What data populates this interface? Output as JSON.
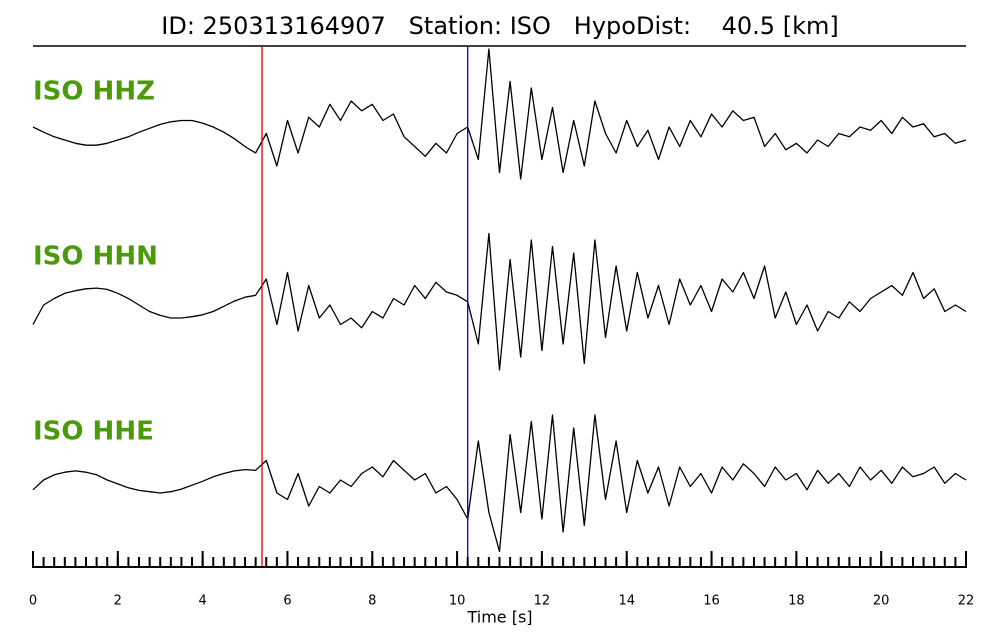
{
  "chart_data": {
    "type": "line",
    "title": "ID: 250313164907   Station: ISO   HypoDist:    40.5 [km]",
    "x_label": "Time [s]",
    "x": [
      0,
      0.25,
      0.5,
      0.75,
      1,
      1.25,
      1.5,
      1.75,
      2,
      2.25,
      2.5,
      2.75,
      3,
      3.25,
      3.5,
      3.75,
      4,
      4.25,
      4.5,
      4.75,
      5,
      5.25,
      5.5,
      5.75,
      6,
      6.25,
      6.5,
      6.75,
      7,
      7.25,
      7.5,
      7.75,
      8,
      8.25,
      8.5,
      8.75,
      9,
      9.25,
      9.5,
      9.75,
      10,
      10.25,
      10.5,
      10.75,
      11,
      11.25,
      11.5,
      11.75,
      12,
      12.25,
      12.5,
      12.75,
      13,
      13.25,
      13.5,
      13.75,
      14,
      14.25,
      14.5,
      14.75,
      15,
      15.25,
      15.5,
      15.75,
      16,
      16.25,
      16.5,
      16.75,
      17,
      17.25,
      17.5,
      17.75,
      18,
      18.25,
      18.5,
      18.75,
      19,
      19.25,
      19.5,
      19.75,
      20,
      20.25,
      20.5,
      20.75,
      21,
      21.25,
      21.5,
      21.75,
      22
    ],
    "series": [
      {
        "name": "ISO HHZ",
        "color": "#000000",
        "values": [
          0.2,
          0.12,
          0.05,
          0.0,
          -0.05,
          -0.08,
          -0.08,
          -0.05,
          0.0,
          0.05,
          0.12,
          0.18,
          0.24,
          0.28,
          0.3,
          0.3,
          0.26,
          0.2,
          0.12,
          0.02,
          -0.1,
          -0.2,
          0.1,
          -0.4,
          0.3,
          -0.2,
          0.35,
          0.2,
          0.55,
          0.3,
          0.6,
          0.45,
          0.55,
          0.3,
          0.4,
          0.05,
          -0.1,
          -0.25,
          -0.05,
          -0.2,
          0.1,
          0.2,
          -0.3,
          1.4,
          -0.5,
          0.9,
          -0.6,
          0.8,
          -0.3,
          0.5,
          -0.5,
          0.3,
          -0.4,
          0.6,
          0.1,
          -0.2,
          0.3,
          -0.1,
          0.15,
          -0.3,
          0.2,
          -0.1,
          0.3,
          0.05,
          0.4,
          0.2,
          0.45,
          0.3,
          0.35,
          -0.1,
          0.1,
          -0.15,
          -0.05,
          -0.2,
          0.0,
          -0.1,
          0.1,
          0.05,
          0.2,
          0.15,
          0.3,
          0.1,
          0.35,
          0.2,
          0.25,
          0.05,
          0.1,
          -0.05,
          0.0
        ]
      },
      {
        "name": "ISO HHN",
        "color": "#000000",
        "values": [
          -0.3,
          0.0,
          0.1,
          0.18,
          0.22,
          0.25,
          0.26,
          0.24,
          0.18,
          0.1,
          0.0,
          -0.1,
          -0.16,
          -0.2,
          -0.2,
          -0.18,
          -0.15,
          -0.1,
          -0.02,
          0.06,
          0.12,
          0.15,
          0.4,
          -0.3,
          0.5,
          -0.4,
          0.3,
          -0.2,
          0.0,
          -0.3,
          -0.2,
          -0.35,
          -0.1,
          -0.2,
          0.1,
          0.0,
          0.3,
          0.1,
          0.35,
          0.2,
          0.15,
          0.05,
          -0.6,
          1.1,
          -1.0,
          0.7,
          -0.8,
          1.0,
          -0.7,
          0.9,
          -0.6,
          0.8,
          -0.9,
          1.0,
          -0.5,
          0.6,
          -0.4,
          0.5,
          -0.2,
          0.3,
          -0.3,
          0.4,
          0.0,
          0.3,
          -0.1,
          0.4,
          0.2,
          0.5,
          0.1,
          0.6,
          -0.2,
          0.2,
          -0.3,
          0.0,
          -0.4,
          -0.1,
          -0.2,
          0.05,
          -0.1,
          0.1,
          0.2,
          0.3,
          0.15,
          0.5,
          0.1,
          0.25,
          -0.1,
          0.0,
          -0.1
        ]
      },
      {
        "name": "ISO HHE",
        "color": "#000000",
        "values": [
          -0.15,
          0.0,
          0.08,
          0.12,
          0.14,
          0.12,
          0.08,
          0.0,
          -0.06,
          -0.12,
          -0.16,
          -0.18,
          -0.2,
          -0.18,
          -0.14,
          -0.08,
          -0.02,
          0.05,
          0.1,
          0.14,
          0.16,
          0.15,
          0.3,
          -0.2,
          -0.3,
          0.1,
          -0.4,
          -0.1,
          -0.2,
          0.0,
          -0.1,
          0.1,
          0.2,
          0.05,
          0.3,
          0.15,
          0.0,
          0.1,
          -0.2,
          -0.1,
          -0.3,
          -0.6,
          0.6,
          -0.5,
          -1.1,
          0.7,
          -0.5,
          0.9,
          -0.6,
          1.0,
          -0.8,
          0.8,
          -0.7,
          1.0,
          -0.3,
          0.6,
          -0.5,
          0.3,
          -0.2,
          0.2,
          -0.4,
          0.2,
          -0.1,
          0.1,
          -0.2,
          0.2,
          0.0,
          0.25,
          0.1,
          -0.1,
          0.2,
          0.0,
          0.1,
          -0.15,
          0.15,
          -0.05,
          0.1,
          -0.1,
          0.2,
          0.0,
          0.15,
          -0.05,
          0.2,
          0.05,
          0.1,
          0.2,
          -0.05,
          0.1,
          0.0
        ]
      }
    ],
    "label_color": "#4a9a0a",
    "ylim": [
      -1,
      1
    ],
    "xlim": [
      0,
      22
    ],
    "xticks": [
      0,
      2,
      4,
      6,
      8,
      10,
      12,
      14,
      16,
      18,
      20,
      22
    ],
    "xminor": 0.25,
    "picks": [
      {
        "x": 5.4,
        "color": "#e00000"
      },
      {
        "x": 10.25,
        "color": "#0000cc"
      }
    ]
  }
}
